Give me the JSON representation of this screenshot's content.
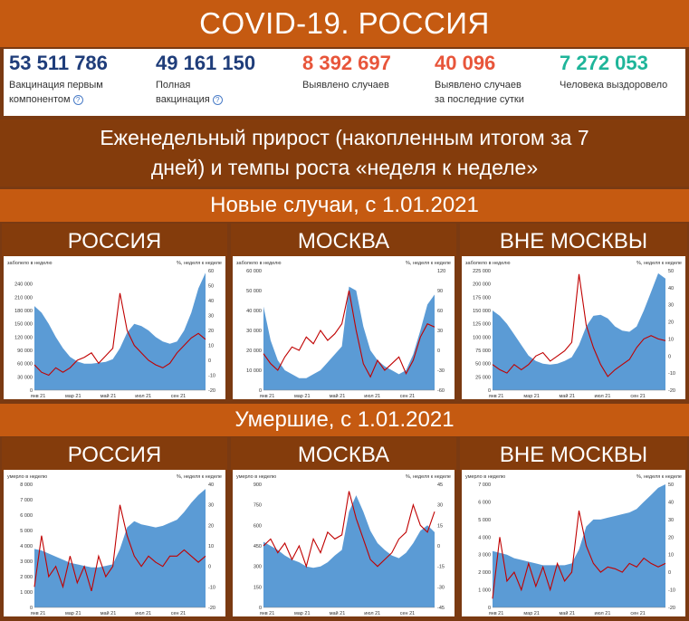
{
  "title": "COVID-19. РОССИЯ",
  "stats": [
    {
      "value": "53 511 786",
      "label1": "Вакцинация первым",
      "label2": "компонентом",
      "help": true,
      "color": "#1f3d7a"
    },
    {
      "value": "49 161 150",
      "label1": "Полная",
      "label2": "вакцинация",
      "help": true,
      "color": "#1f3d7a"
    },
    {
      "value": "8 392 697",
      "label1": "Выявлено случаев",
      "label2": "",
      "help": false,
      "color": "#e8553a"
    },
    {
      "value": "40 096",
      "label1": "Выявлено случаев",
      "label2": "за последние сутки",
      "help": false,
      "color": "#e8553a"
    },
    {
      "value": "7 272 053",
      "label1": "Человека выздоровело",
      "label2": "",
      "help": false,
      "color": "#1fb59a"
    }
  ],
  "weekly_line1": "Еженедельный прирост (накопленным итогом за 7",
  "weekly_line2": "дней) и темпы роста «неделя к неделе»",
  "cases_header": "Новые случаи, с 1.01.2021",
  "deaths_header": "Умершие, с 1.01.2021",
  "regions": [
    "РОССИЯ",
    "МОСКВА",
    "ВНЕ МОСКВЫ"
  ],
  "colors": {
    "area": "#5b9bd5",
    "line": "#c00000"
  },
  "chart_data": [
    {
      "type": "area",
      "ylabel_left": "заболело в неделю",
      "ylabel_right": "%, неделя к неделе",
      "left_ticks": [
        "0",
        "30 000",
        "60 000",
        "90 000",
        "120 000",
        "150 000",
        "180 000",
        "210 000",
        "240 000"
      ],
      "left_max": 270000,
      "right_ticks": [
        "-20",
        "-10",
        "0",
        "10",
        "20",
        "30",
        "40",
        "50",
        "60"
      ],
      "right_min": -20,
      "right_max": 60,
      "x_ticks": [
        "янв 21",
        "мар 21",
        "май 21",
        "июл 21",
        "сен 21"
      ],
      "area": [
        190000,
        175000,
        150000,
        120000,
        95000,
        75000,
        65000,
        60000,
        60000,
        62000,
        64000,
        70000,
        95000,
        130000,
        150000,
        145000,
        135000,
        120000,
        110000,
        105000,
        110000,
        135000,
        175000,
        230000,
        265000
      ],
      "line": [
        -3,
        -8,
        -10,
        -5,
        -8,
        -5,
        0,
        2,
        5,
        -2,
        3,
        8,
        45,
        20,
        10,
        5,
        0,
        -3,
        -5,
        -2,
        5,
        10,
        15,
        18,
        14
      ]
    },
    {
      "type": "area",
      "ylabel_left": "заболело в неделю",
      "ylabel_right": "%, неделя к неделе",
      "left_ticks": [
        "0",
        "10 000",
        "20 000",
        "30 000",
        "40 000",
        "50 000",
        "60 000"
      ],
      "left_max": 60000,
      "right_ticks": [
        "-60",
        "-30",
        "0",
        "30",
        "60",
        "90",
        "120"
      ],
      "right_min": -60,
      "right_max": 120,
      "x_ticks": [
        "янв 21",
        "мар 21",
        "май 21",
        "июл 21",
        "сен 21"
      ],
      "area": [
        42000,
        25000,
        15000,
        10000,
        8000,
        6000,
        6000,
        8000,
        10000,
        14000,
        18000,
        22000,
        52000,
        50000,
        32000,
        20000,
        15000,
        12000,
        10000,
        8000,
        10000,
        18000,
        30000,
        43000,
        48000
      ],
      "line": [
        -5,
        -20,
        -30,
        -10,
        5,
        0,
        20,
        10,
        30,
        15,
        25,
        40,
        90,
        30,
        -20,
        -40,
        -15,
        -30,
        -20,
        -10,
        -35,
        -15,
        20,
        40,
        35
      ]
    },
    {
      "type": "area",
      "ylabel_left": "заболело в неделю",
      "ylabel_right": "%, неделя к неделе",
      "left_ticks": [
        "0",
        "25 000",
        "50 000",
        "75 000",
        "100 000",
        "125 000",
        "150 000",
        "175 000",
        "200 000",
        "225 000"
      ],
      "left_max": 225000,
      "right_ticks": [
        "-20",
        "-10",
        "0",
        "10",
        "20",
        "30",
        "40",
        "50"
      ],
      "right_min": -20,
      "right_max": 50,
      "x_ticks": [
        "янв 21",
        "мар 21",
        "май 21",
        "июл 21",
        "сен 21"
      ],
      "area": [
        150000,
        140000,
        125000,
        105000,
        85000,
        65000,
        55000,
        50000,
        48000,
        50000,
        55000,
        62000,
        85000,
        120000,
        140000,
        142000,
        135000,
        120000,
        112000,
        110000,
        120000,
        150000,
        185000,
        220000,
        210000
      ],
      "line": [
        -5,
        -8,
        -10,
        -5,
        -8,
        -5,
        0,
        2,
        -3,
        0,
        3,
        8,
        48,
        18,
        5,
        -5,
        -12,
        -8,
        -5,
        -2,
        5,
        10,
        12,
        10,
        9
      ]
    },
    {
      "type": "area",
      "ylabel_left": "умерло в неделю",
      "ylabel_right": "%, неделя к неделе",
      "left_ticks": [
        "0",
        "1 000",
        "2 000",
        "3 000",
        "4 000",
        "5 000",
        "6 000",
        "7 000",
        "8 000"
      ],
      "left_max": 8000,
      "right_ticks": [
        "-20",
        "-10",
        "0",
        "10",
        "20",
        "30",
        "40"
      ],
      "right_min": -20,
      "right_max": 40,
      "x_ticks": [
        "янв 21",
        "мар 21",
        "май 21",
        "июл 21",
        "сен 21"
      ],
      "area": [
        3800,
        3700,
        3500,
        3300,
        3100,
        2900,
        2800,
        2700,
        2600,
        2600,
        2700,
        2800,
        3800,
        5200,
        5600,
        5400,
        5300,
        5200,
        5300,
        5500,
        5700,
        6200,
        6800,
        7300,
        7700
      ],
      "line": [
        -10,
        15,
        -5,
        0,
        -10,
        5,
        -8,
        0,
        -12,
        5,
        -5,
        0,
        30,
        15,
        5,
        0,
        5,
        2,
        0,
        5,
        5,
        8,
        5,
        2,
        5
      ]
    },
    {
      "type": "area",
      "ylabel_left": "умерло в неделю",
      "ylabel_right": "%, неделя к неделе",
      "left_ticks": [
        "0",
        "150",
        "300",
        "450",
        "600",
        "750",
        "900"
      ],
      "left_max": 900,
      "right_ticks": [
        "-45",
        "-30",
        "-15",
        "0",
        "15",
        "30",
        "45"
      ],
      "right_min": -45,
      "right_max": 45,
      "x_ticks": [
        "янв 21",
        "мар 21",
        "май 21",
        "июл 21",
        "сен 21"
      ],
      "area": [
        480,
        450,
        420,
        380,
        350,
        330,
        300,
        290,
        300,
        330,
        380,
        420,
        700,
        820,
        700,
        560,
        470,
        420,
        380,
        360,
        400,
        470,
        560,
        600,
        550
      ],
      "line": [
        0,
        5,
        -5,
        2,
        -10,
        0,
        -15,
        5,
        -5,
        10,
        5,
        8,
        40,
        20,
        5,
        -10,
        -15,
        -10,
        -5,
        5,
        10,
        30,
        15,
        10,
        25
      ]
    },
    {
      "type": "area",
      "ylabel_left": "умерло в неделю",
      "ylabel_right": "%, неделя к неделе",
      "left_ticks": [
        "0",
        "1 000",
        "2 000",
        "3 000",
        "4 000",
        "5 000",
        "6 000",
        "7 000"
      ],
      "left_max": 7000,
      "right_ticks": [
        "-20",
        "-10",
        "0",
        "10",
        "20",
        "30",
        "40",
        "50"
      ],
      "right_min": -20,
      "right_max": 50,
      "x_ticks": [
        "янв 21",
        "мар 21",
        "май 21",
        "июл 21",
        "сен 21"
      ],
      "area": [
        3200,
        3100,
        3000,
        2800,
        2700,
        2600,
        2500,
        2400,
        2400,
        2400,
        2400,
        2500,
        3300,
        4600,
        5000,
        5000,
        5100,
        5200,
        5300,
        5400,
        5600,
        6000,
        6400,
        6800,
        7000
      ],
      "line": [
        -15,
        20,
        -5,
        0,
        -10,
        5,
        -8,
        3,
        -10,
        5,
        -5,
        0,
        35,
        15,
        5,
        0,
        3,
        2,
        0,
        5,
        3,
        8,
        5,
        3,
        5
      ]
    }
  ]
}
